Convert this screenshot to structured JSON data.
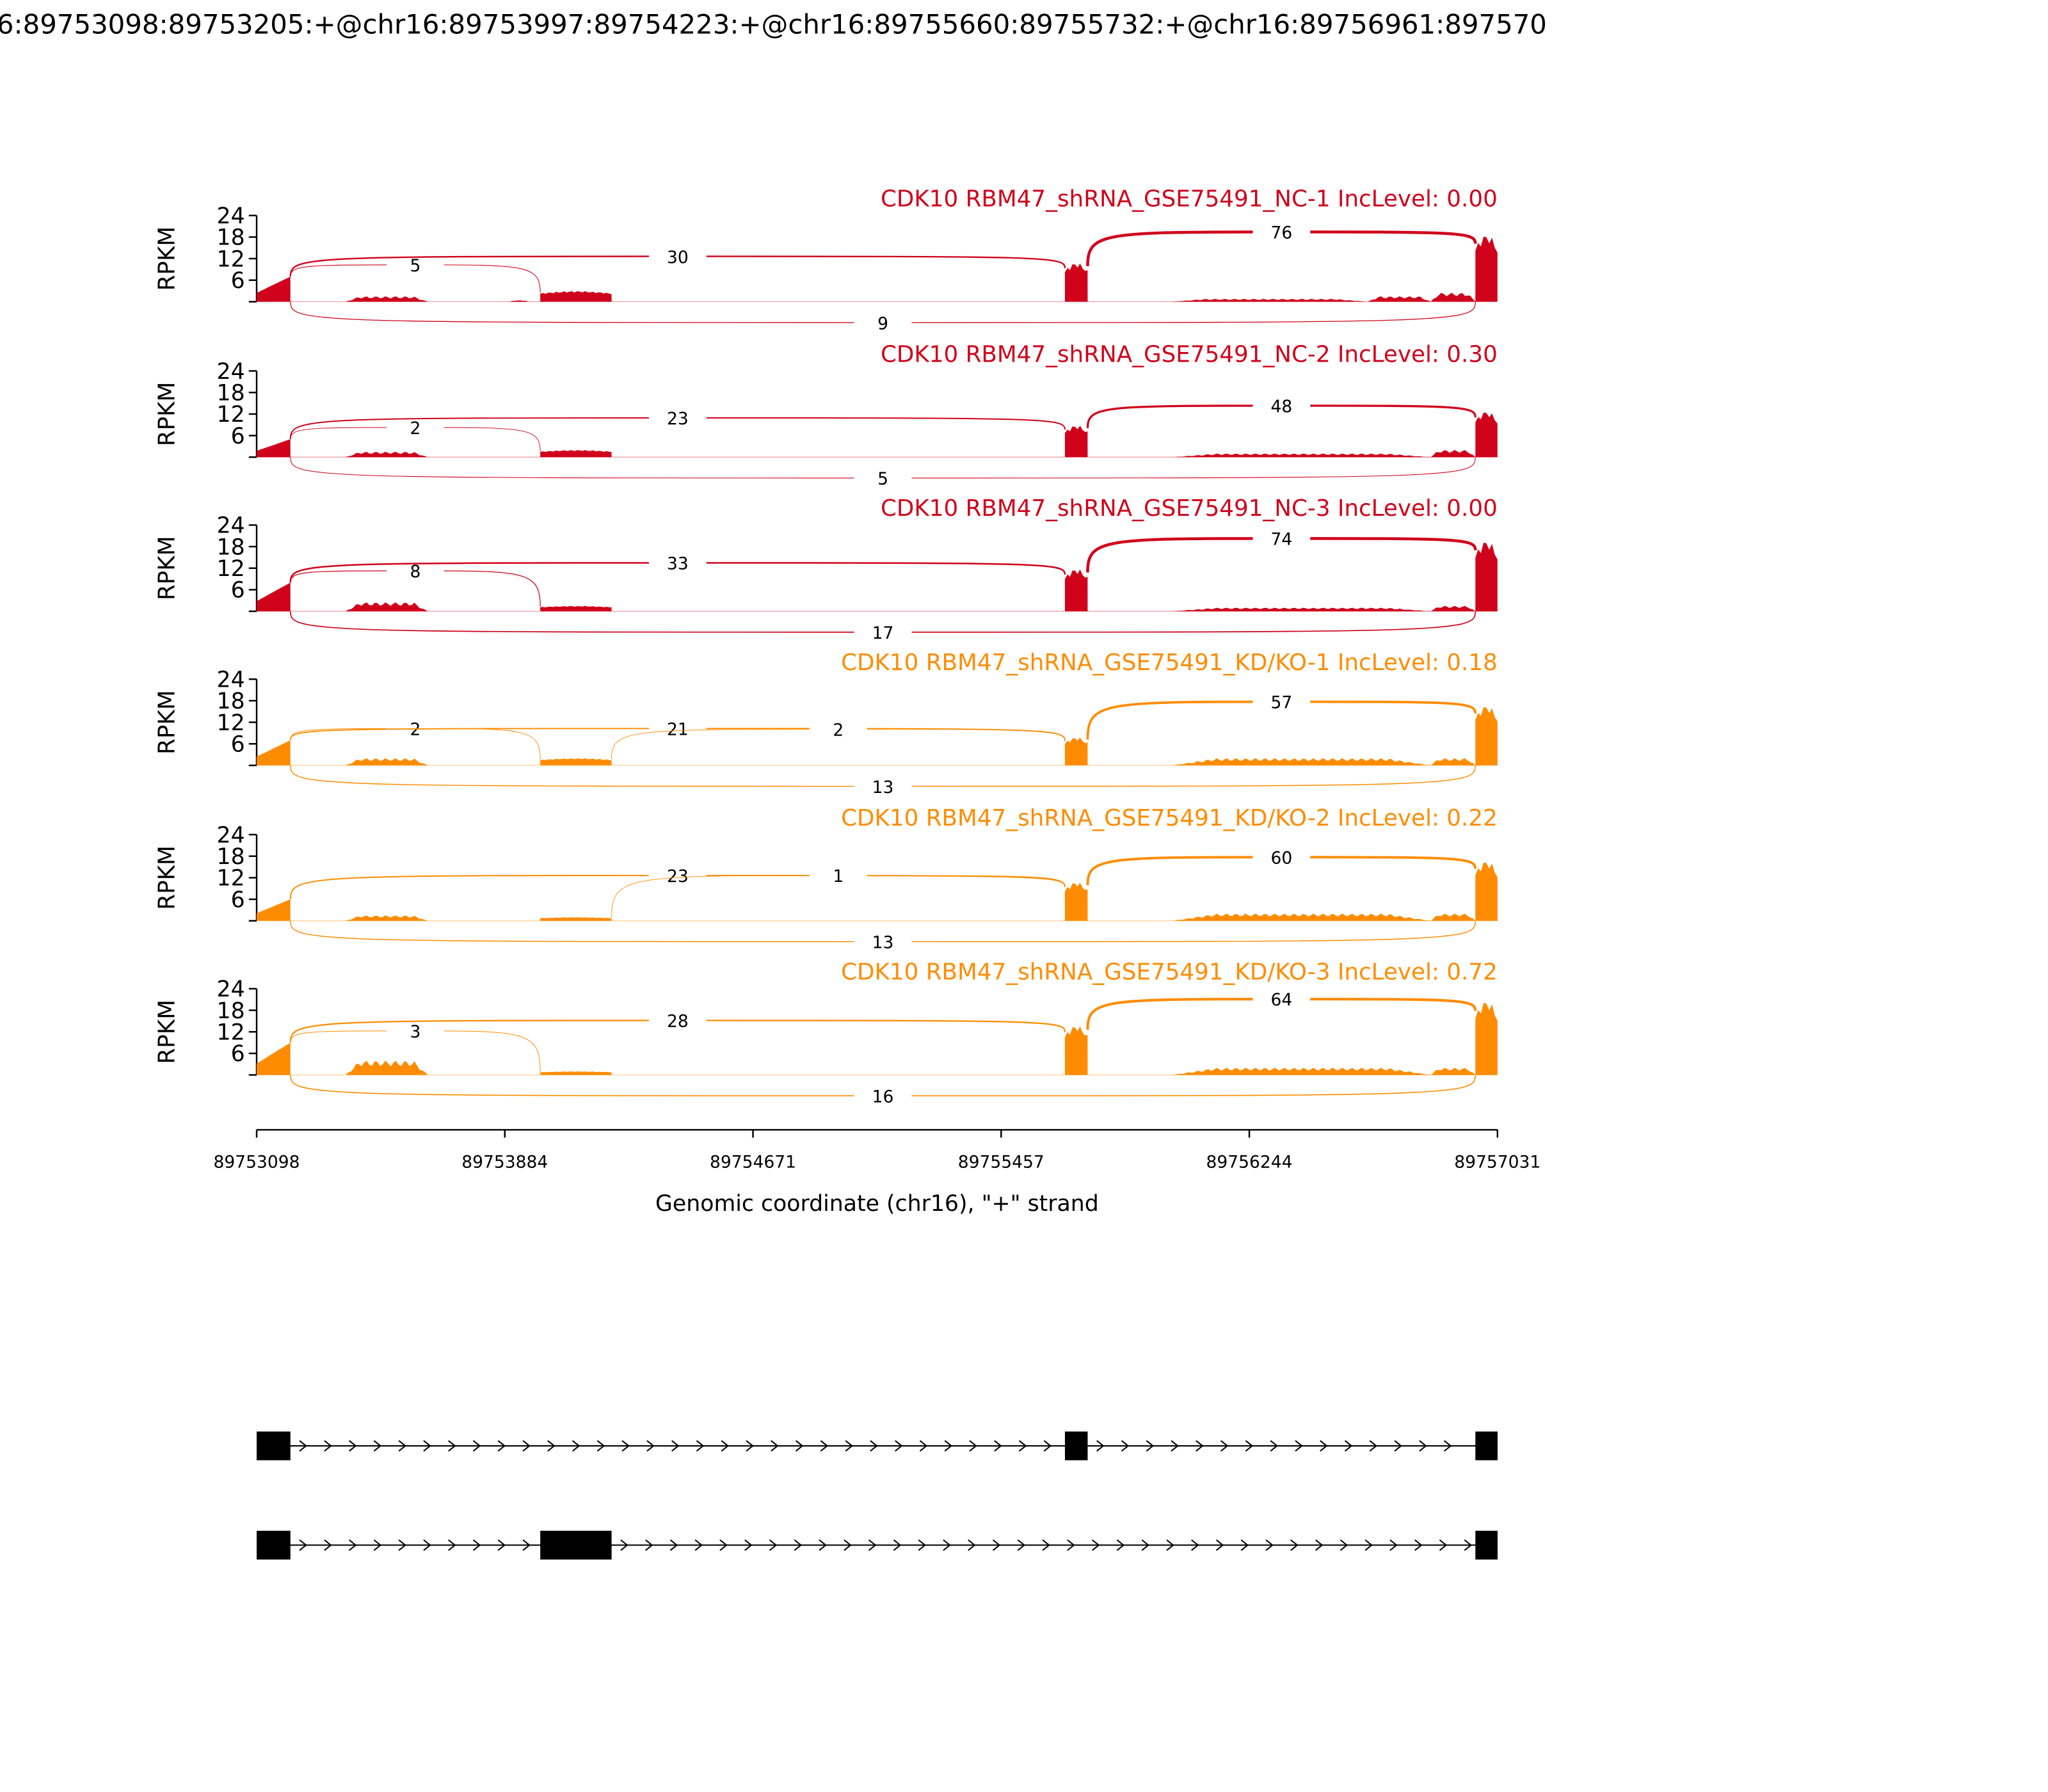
{
  "chart_data": {
    "type": "sashimi",
    "title": "6:89753098:89753205:+@chr16:89753997:89754223:+@chr16:89755660:89755732:+@chr16:89756961:897570",
    "xlabel": "Genomic coordinate (chr16), \"+\" strand",
    "ylabel": "RPKM",
    "xlim": [
      89753098,
      89757031
    ],
    "ylim": [
      0,
      24
    ],
    "yticks": [
      "6",
      "12",
      "18",
      "24"
    ],
    "xticks": [
      "89753098",
      "89753884",
      "89754671",
      "89755457",
      "89756244",
      "89757031"
    ],
    "colors": {
      "NC": "#d0021b",
      "KD": "#ff8c00"
    },
    "exons": [
      [
        89753098,
        89753205
      ],
      [
        89753997,
        89754223
      ],
      [
        89755660,
        89755732
      ],
      [
        89756961,
        89757031
      ]
    ],
    "transcripts": [
      [
        0,
        2,
        3
      ],
      [
        0,
        1,
        3
      ]
    ],
    "samples": [
      {
        "title": "CDK10 RBM47_shRNA_GSE75491_NC-1 IncLevel: 0.00",
        "group": "NC",
        "coverage": [
          [
            89753098,
            89753205,
            7
          ],
          [
            89753380,
            89753640,
            1.5
          ],
          [
            89753900,
            89753960,
            0.4
          ],
          [
            89753997,
            89754223,
            3
          ],
          [
            89755660,
            89755732,
            11
          ],
          [
            89756000,
            89756620,
            0.8
          ],
          [
            89756620,
            89756820,
            1.5
          ],
          [
            89756820,
            89756961,
            2.5
          ],
          [
            89756961,
            89757031,
            19
          ]
        ],
        "junctions": [
          {
            "from": 0,
            "to": 1,
            "count": "5",
            "side": "above"
          },
          {
            "from": 0,
            "to": 2,
            "count": "30",
            "side": "above"
          },
          {
            "from": 2,
            "to": 3,
            "count": "76",
            "side": "above"
          },
          {
            "from": 0,
            "to": 3,
            "count": "9",
            "side": "below"
          }
        ]
      },
      {
        "title": "CDK10 RBM47_shRNA_GSE75491_NC-2 IncLevel: 0.30",
        "group": "NC",
        "coverage": [
          [
            89753098,
            89753205,
            5
          ],
          [
            89753380,
            89753640,
            1.5
          ],
          [
            89753997,
            89754223,
            2
          ],
          [
            89755660,
            89755732,
            9
          ],
          [
            89756000,
            89756820,
            1
          ],
          [
            89756820,
            89756961,
            2
          ],
          [
            89756961,
            89757031,
            13
          ]
        ],
        "junctions": [
          {
            "from": 0,
            "to": 1,
            "count": "2",
            "side": "above"
          },
          {
            "from": 0,
            "to": 2,
            "count": "23",
            "side": "above"
          },
          {
            "from": 2,
            "to": 3,
            "count": "48",
            "side": "above"
          },
          {
            "from": 0,
            "to": 3,
            "count": "5",
            "side": "below"
          }
        ]
      },
      {
        "title": "CDK10 RBM47_shRNA_GSE75491_NC-3 IncLevel: 0.00",
        "group": "NC",
        "coverage": [
          [
            89753098,
            89753205,
            8
          ],
          [
            89753380,
            89753640,
            2.5
          ],
          [
            89753997,
            89754223,
            1.5
          ],
          [
            89755660,
            89755732,
            12
          ],
          [
            89756000,
            89756820,
            1
          ],
          [
            89756820,
            89756961,
            1.5
          ],
          [
            89756961,
            89757031,
            20
          ]
        ],
        "junctions": [
          {
            "from": 0,
            "to": 1,
            "count": "8",
            "side": "above"
          },
          {
            "from": 0,
            "to": 2,
            "count": "33",
            "side": "above"
          },
          {
            "from": 2,
            "to": 3,
            "count": "74",
            "side": "above"
          },
          {
            "from": 0,
            "to": 3,
            "count": "17",
            "side": "below"
          }
        ]
      },
      {
        "title": "CDK10 RBM47_shRNA_GSE75491_KD/KO-1 IncLevel: 0.18",
        "group": "KD",
        "coverage": [
          [
            89753098,
            89753205,
            7
          ],
          [
            89753380,
            89753640,
            2
          ],
          [
            89753997,
            89754223,
            2
          ],
          [
            89755660,
            89755732,
            8
          ],
          [
            89756000,
            89756820,
            2
          ],
          [
            89756820,
            89756961,
            2
          ],
          [
            89756961,
            89757031,
            17
          ]
        ],
        "junctions": [
          {
            "from": 0,
            "to": 1,
            "count": "2",
            "side": "above"
          },
          {
            "from": 0,
            "to": 2,
            "count": "21",
            "side": "above"
          },
          {
            "from": 1,
            "to": 2,
            "count": "2",
            "side": "above"
          },
          {
            "from": 2,
            "to": 3,
            "count": "57",
            "side": "above"
          },
          {
            "from": 0,
            "to": 3,
            "count": "13",
            "side": "below"
          }
        ]
      },
      {
        "title": "CDK10 RBM47_shRNA_GSE75491_KD/KO-2 IncLevel: 0.22",
        "group": "KD",
        "coverage": [
          [
            89753098,
            89753205,
            6
          ],
          [
            89753380,
            89753640,
            1.5
          ],
          [
            89753997,
            89754223,
            1
          ],
          [
            89755660,
            89755732,
            11
          ],
          [
            89756000,
            89756820,
            2
          ],
          [
            89756820,
            89756961,
            2
          ],
          [
            89756961,
            89757031,
            17
          ]
        ],
        "junctions": [
          {
            "from": 0,
            "to": 2,
            "count": "23",
            "side": "above"
          },
          {
            "from": 1,
            "to": 2,
            "count": "1",
            "side": "above"
          },
          {
            "from": 2,
            "to": 3,
            "count": "60",
            "side": "above"
          },
          {
            "from": 0,
            "to": 3,
            "count": "13",
            "side": "below"
          }
        ]
      },
      {
        "title": "CDK10 RBM47_shRNA_GSE75491_KD/KO-3 IncLevel: 0.72",
        "group": "KD",
        "coverage": [
          [
            89753098,
            89753205,
            9
          ],
          [
            89753380,
            89753640,
            4
          ],
          [
            89753997,
            89754223,
            1
          ],
          [
            89755660,
            89755732,
            14
          ],
          [
            89756000,
            89756820,
            2
          ],
          [
            89756820,
            89756961,
            2
          ],
          [
            89756961,
            89757031,
            21
          ]
        ],
        "junctions": [
          {
            "from": 0,
            "to": 1,
            "count": "3",
            "side": "above"
          },
          {
            "from": 0,
            "to": 2,
            "count": "28",
            "side": "above"
          },
          {
            "from": 2,
            "to": 3,
            "count": "64",
            "side": "above"
          },
          {
            "from": 0,
            "to": 3,
            "count": "16",
            "side": "below"
          }
        ]
      }
    ]
  }
}
